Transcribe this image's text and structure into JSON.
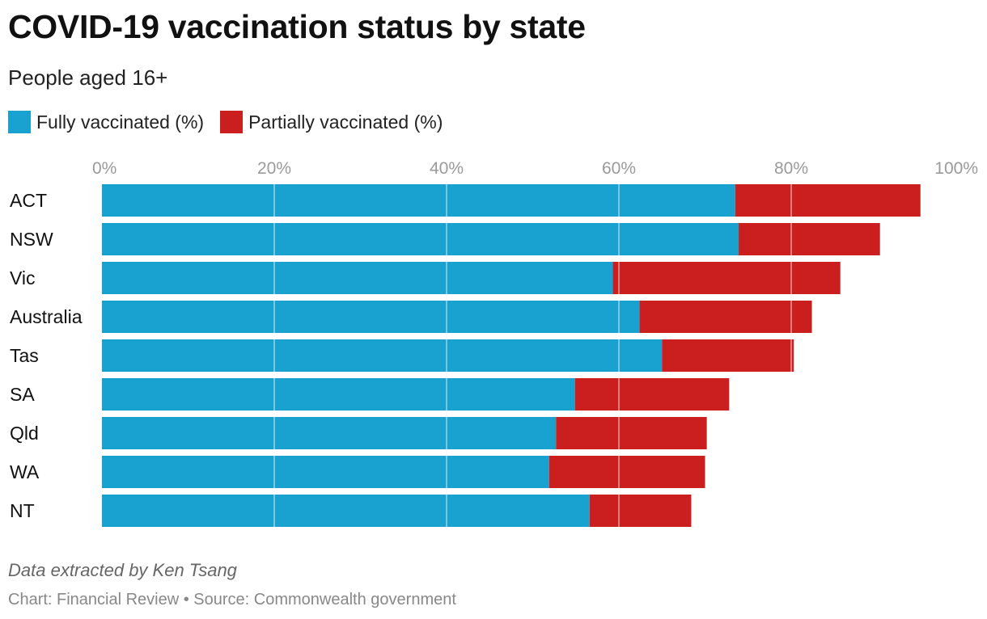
{
  "title": "COVID-19 vaccination status by state",
  "subtitle": "People aged 16+",
  "legend": [
    {
      "label": "Fully vaccinated (%)",
      "color": "#19a2d0"
    },
    {
      "label": "Partially vaccinated (%)",
      "color": "#cb1f1f"
    }
  ],
  "footer": {
    "note": "Data extracted by Ken Tsang",
    "credit": "Chart: Financial Review • Source: Commonwealth government"
  },
  "chart_data": {
    "type": "bar",
    "orientation": "horizontal",
    "stacked": true,
    "categories": [
      "ACT",
      "NSW",
      "Vic",
      "Australia",
      "Tas",
      "SA",
      "Qld",
      "WA",
      "NT"
    ],
    "series": [
      {
        "name": "Fully vaccinated (%)",
        "color": "#19a2d0",
        "values": [
          73.5,
          73.9,
          59.3,
          62.4,
          65.0,
          54.9,
          52.7,
          51.9,
          56.6
        ]
      },
      {
        "name": "Partially vaccinated (%)",
        "color": "#cb1f1f",
        "values": [
          21.5,
          16.4,
          26.4,
          20.0,
          15.3,
          17.9,
          17.5,
          18.1,
          11.8
        ]
      }
    ],
    "xlim": [
      0,
      100
    ],
    "xticks": [
      "0%",
      "20%",
      "40%",
      "60%",
      "80%",
      "100%"
    ],
    "xtick_values": [
      0,
      20,
      40,
      60,
      80,
      100
    ],
    "grid": true,
    "xaxis_position": "top"
  }
}
